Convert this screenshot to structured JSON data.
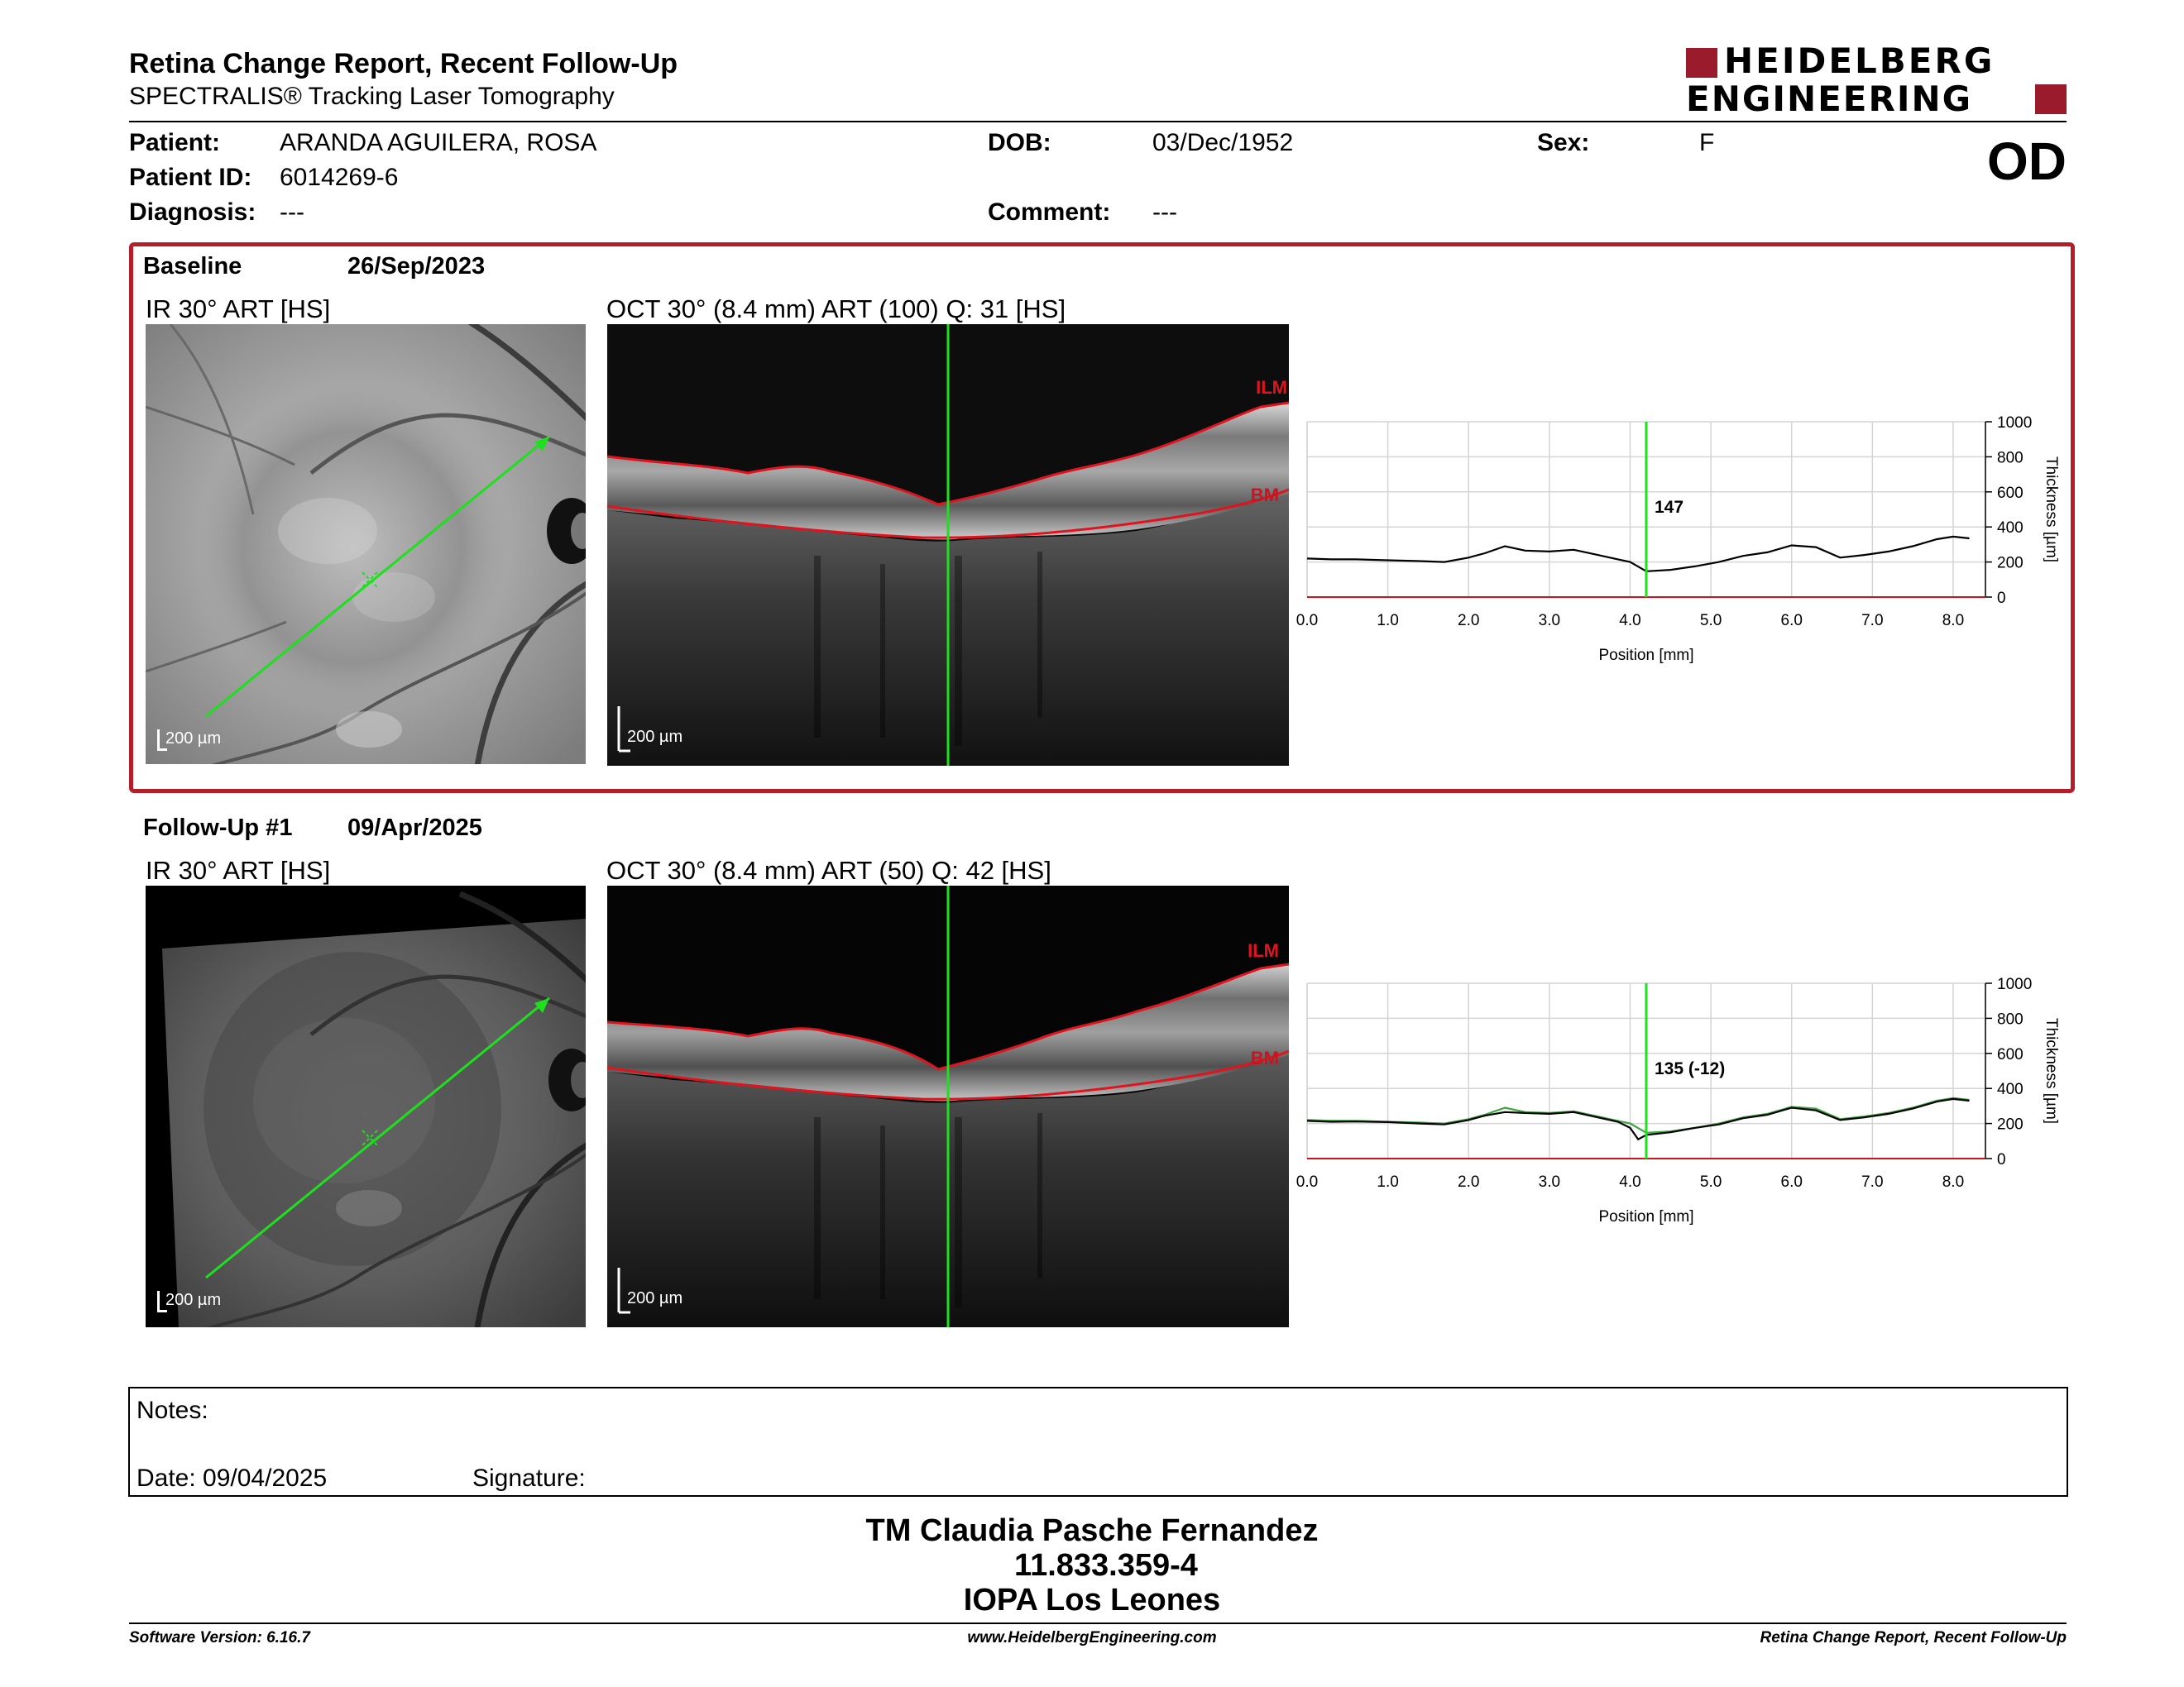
{
  "header": {
    "title": "Retina Change Report, Recent Follow-Up",
    "subtitle": "SPECTRALIS® Tracking Laser Tomography",
    "logo_line1": "HEIDELBERG",
    "logo_line2": "ENGINEERING"
  },
  "patient": {
    "patient_label": "Patient:",
    "patient_value": "ARANDA AGUILERA, ROSA",
    "id_label": "Patient ID:",
    "id_value": "6014269-6",
    "diagnosis_label": "Diagnosis:",
    "diagnosis_value": "---",
    "dob_label": "DOB:",
    "dob_value": "03/Dec/1952",
    "comment_label": "Comment:",
    "comment_value": "---",
    "sex_label": "Sex:",
    "sex_value": "F",
    "eye": "OD"
  },
  "baseline": {
    "label": "Baseline",
    "date": "26/Sep/2023",
    "ir_title": "IR 30° ART [HS]",
    "oct_title": "OCT 30° (8.4 mm) ART (100) Q: 31 [HS]",
    "scale_ir": "200 µm",
    "scale_oct": "200 µm",
    "ilm": "ILM",
    "bm": "BM",
    "marker_value": "147"
  },
  "followup": {
    "label": "Follow-Up #1",
    "date": "09/Apr/2025",
    "ir_title": "IR 30° ART [HS]",
    "oct_title": "OCT 30° (8.4 mm) ART (50) Q: 42 [HS]",
    "scale_ir": "200 µm",
    "scale_oct": "200 µm",
    "ilm": "ILM",
    "bm": "BM",
    "marker_value": "135 (-12)"
  },
  "chart_data": [
    {
      "type": "line",
      "title": "",
      "xlabel": "Position [mm]",
      "ylabel": "Thickness [µm]",
      "xlim": [
        0,
        8.4
      ],
      "ylim": [
        0,
        1000
      ],
      "x_ticks": [
        "0.0",
        "1.0",
        "2.0",
        "3.0",
        "4.0",
        "5.0",
        "6.0",
        "7.0",
        "8.0"
      ],
      "y_ticks": [
        "0",
        "200",
        "400",
        "600",
        "800",
        "1000"
      ],
      "marker_x": 4.2,
      "marker_label": "147",
      "series": [
        {
          "x": [
            0,
            0.3,
            0.6,
            1.0,
            1.4,
            1.7,
            2.0,
            2.2,
            2.45,
            2.7,
            3.0,
            3.3,
            3.6,
            3.85,
            4.0,
            4.2,
            4.5,
            4.8,
            5.1,
            5.4,
            5.7,
            6.0,
            6.3,
            6.6,
            6.9,
            7.2,
            7.5,
            7.8,
            8.0,
            8.2
          ],
          "y": [
            220,
            215,
            215,
            210,
            205,
            200,
            225,
            250,
            290,
            265,
            260,
            270,
            240,
            215,
            200,
            147,
            155,
            175,
            200,
            235,
            255,
            295,
            285,
            225,
            240,
            260,
            290,
            330,
            345,
            335
          ]
        }
      ]
    },
    {
      "type": "line",
      "title": "",
      "xlabel": "Position [mm]",
      "ylabel": "Thickness [µm]",
      "xlim": [
        0,
        8.4
      ],
      "ylim": [
        0,
        1000
      ],
      "x_ticks": [
        "0.0",
        "1.0",
        "2.0",
        "3.0",
        "4.0",
        "5.0",
        "6.0",
        "7.0",
        "8.0"
      ],
      "y_ticks": [
        "0",
        "200",
        "400",
        "600",
        "800",
        "1000"
      ],
      "marker_x": 4.2,
      "marker_label": "135 (-12)",
      "series": [
        {
          "x": [
            0,
            0.3,
            0.6,
            1.0,
            1.4,
            1.7,
            2.0,
            2.2,
            2.45,
            2.7,
            3.0,
            3.3,
            3.6,
            3.85,
            4.0,
            4.2,
            4.5,
            4.8,
            5.1,
            5.4,
            5.7,
            6.0,
            6.3,
            6.6,
            6.9,
            7.2,
            7.5,
            7.8,
            8.0,
            8.2
          ],
          "y": [
            220,
            215,
            215,
            210,
            205,
            200,
            225,
            250,
            290,
            265,
            260,
            270,
            240,
            215,
            200,
            147,
            155,
            175,
            200,
            235,
            255,
            295,
            285,
            225,
            240,
            260,
            290,
            330,
            345,
            335
          ]
        },
        {
          "x": [
            0,
            0.3,
            0.6,
            1.0,
            1.4,
            1.7,
            2.0,
            2.2,
            2.45,
            2.7,
            3.0,
            3.3,
            3.6,
            3.85,
            4.0,
            4.1,
            4.2,
            4.5,
            4.8,
            5.1,
            5.4,
            5.7,
            6.0,
            6.3,
            6.6,
            6.9,
            7.2,
            7.5,
            7.8,
            8.0,
            8.2
          ],
          "y": [
            215,
            210,
            212,
            208,
            200,
            195,
            220,
            245,
            265,
            260,
            255,
            265,
            235,
            210,
            175,
            110,
            135,
            150,
            175,
            195,
            230,
            250,
            290,
            275,
            220,
            235,
            255,
            285,
            325,
            340,
            330
          ]
        }
      ]
    }
  ],
  "notes": {
    "label": "Notes:",
    "date_label": "Date: 09/04/2025",
    "signature_label": "Signature:"
  },
  "signer": {
    "name": "TM Claudia Pasche Fernandez",
    "id": "11.833.359-4",
    "institution": "IOPA Los Leones"
  },
  "footer": {
    "left": "Software Version: 6.16.7",
    "center": "www.HeidelbergEngineering.com",
    "right": "Retina Change Report, Recent Follow-Up"
  },
  "colors": {
    "frame_red": "#b41e28",
    "logo_red": "#9a1b2c",
    "green": "#1ee01e",
    "line_red": "#d0141e"
  }
}
